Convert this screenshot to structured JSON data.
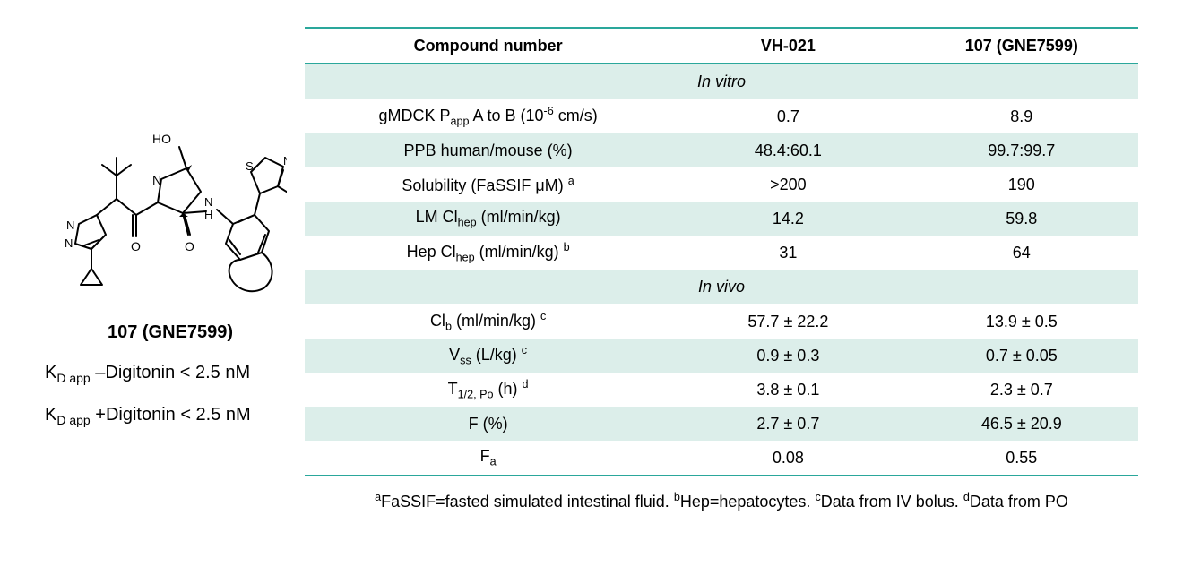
{
  "compound": {
    "label": "107 (GNE7599)",
    "kd_minus_html": "K<sub>D app</sub> &ndash;Digitonin &lt; 2.5 nM",
    "kd_plus_html": "K<sub>D app</sub> +Digitonin &lt; 2.5 nM"
  },
  "table": {
    "colors": {
      "band": "#dceeea",
      "rule": "#2aa79b"
    },
    "header": {
      "c1": "Compound number",
      "c2": "VH-021",
      "c3": "107 (GNE7599)"
    },
    "sections": [
      {
        "title": "In vitro",
        "rows": [
          {
            "param_html": "gMDCK P<sub>app</sub> A to B (10<sup>-6</sup> cm/s)",
            "v1": "0.7",
            "v2": "8.9",
            "band": false
          },
          {
            "param_html": "PPB human/mouse (%)",
            "v1": "48.4:60.1",
            "v2": "99.7:99.7",
            "band": true
          },
          {
            "param_html": "Solubility (FaSSIF &mu;M) <sup>a</sup>",
            "v1": ">200",
            "v2": "190",
            "band": false
          },
          {
            "param_html": "LM Cl<sub>hep</sub> (ml/min/kg)",
            "v1": "14.2",
            "v2": "59.8",
            "band": true
          },
          {
            "param_html": "Hep Cl<sub>hep</sub> (ml/min/kg) <sup>b</sup>",
            "v1": "31",
            "v2": "64",
            "band": false
          }
        ]
      },
      {
        "title": "In vivo",
        "rows": [
          {
            "param_html": "Cl<sub>b</sub> (ml/min/kg) <sup>c</sup>",
            "v1": "57.7 ± 22.2",
            "v2": "13.9 ± 0.5",
            "band": false
          },
          {
            "param_html": "V<sub>ss</sub> (L/kg) <sup>c</sup>",
            "v1": "0.9 ± 0.3",
            "v2": "0.7 ± 0.05",
            "band": true
          },
          {
            "param_html": "T<sub>1/2, Po</sub> (h) <sup>d</sup>",
            "v1": "3.8 ± 0.1",
            "v2": "2.3 ± 0.7",
            "band": false
          },
          {
            "param_html": "F (%)",
            "v1": "2.7 ± 0.7",
            "v2": "46.5 ± 20.9",
            "band": true
          },
          {
            "param_html": "F<sub>a</sub>",
            "v1": "0.08",
            "v2": "0.55",
            "band": false,
            "last": true
          }
        ]
      }
    ],
    "footnote_html": "<sup>a</sup>FaSSIF=fasted simulated intestinal fluid. <sup>b</sup>Hep=hepatocytes. <sup>c</sup>Data from IV bolus. <sup>d</sup>Data from PO"
  }
}
